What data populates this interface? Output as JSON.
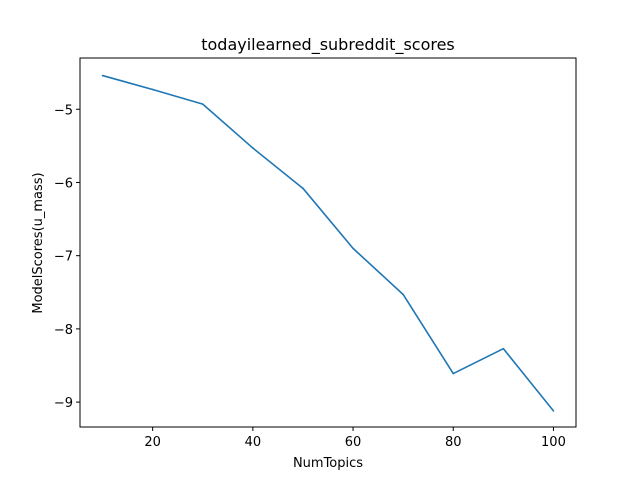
{
  "chart_data": {
    "type": "line",
    "title": "todayilearned_subreddit_scores",
    "xlabel": "NumTopics",
    "ylabel": "ModelScores(u_mass)",
    "xlim": [
      5.5,
      104.5
    ],
    "ylim": [
      -9.34,
      -4.3
    ],
    "x_ticks": [
      20,
      40,
      60,
      80,
      100
    ],
    "y_ticks": [
      -9,
      -8,
      -7,
      -6,
      -5
    ],
    "grid": false,
    "line_color": "#1f77b4",
    "series": [
      {
        "x": [
          10,
          20,
          30,
          40,
          50,
          60,
          70,
          80,
          90,
          100
        ],
        "values": [
          -4.54,
          -4.73,
          -4.93,
          -5.53,
          -6.08,
          -6.9,
          -7.53,
          -8.61,
          -8.27,
          -9.12
        ]
      }
    ]
  }
}
